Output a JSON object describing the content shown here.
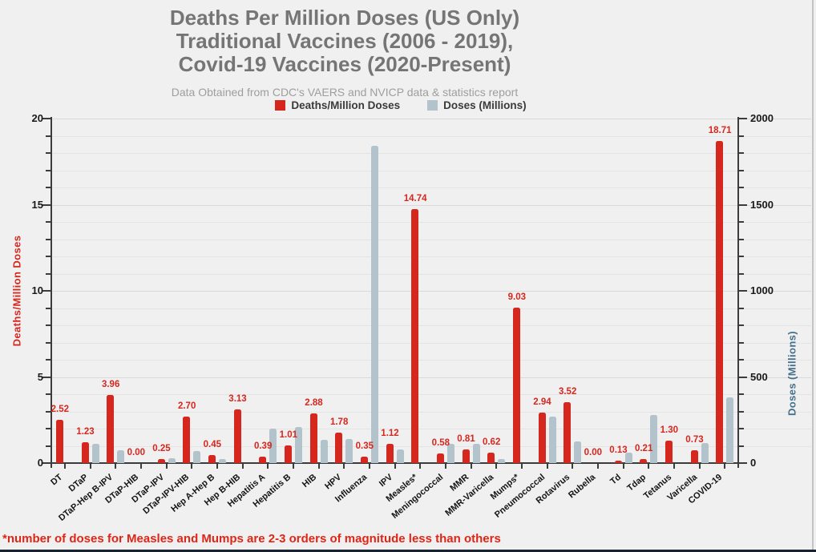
{
  "title": {
    "lines": [
      "Deaths Per Million Doses (US Only)",
      "Traditional Vaccines (2006 - 2019),",
      "Covid-19 Vaccines (2020-Present)"
    ]
  },
  "subtitle": "Data Obtained from CDC's VAERS and NVICP data & statistics report",
  "legend": [
    {
      "label": "Deaths/Million Doses",
      "color": "#d5271d"
    },
    {
      "label": "Doses (Millions)",
      "color": "#b2c3cc"
    }
  ],
  "footnote": "*number of doses for Measles and Mumps are 2-3 orders of magnitude less than others",
  "colors": {
    "deaths_red": "#d5271d",
    "doses_gray": "#b2c3cc",
    "title_gray": "#757575",
    "subtitle_gray": "#9e9e9e",
    "axis_dark": "#3c3c3c",
    "right_axis_blue": "#44708c",
    "footnote_red": "#e02516",
    "background": "#f0f0f1"
  },
  "chart_data": {
    "type": "bar",
    "title": "Deaths Per Million Doses (US Only) Traditional Vaccines (2006 - 2019), Covid-19 Vaccines (2020-Present)",
    "subtitle": "Data Obtained from CDC's VAERS and NVICP data & statistics report",
    "legend_position": "top",
    "grid": true,
    "categories": [
      "DT",
      "DTaP",
      "DTaP-Hep B-IPV",
      "DTaP-HIB",
      "DTaP-IPV",
      "DTaP-IPV-HIB",
      "Hep A-Hep B",
      "Hep B-HIB",
      "Hepatitis A",
      "Hepatitis B",
      "HIB",
      "HPV",
      "Influenza",
      "IPV",
      "Measles*",
      "Meningococcal",
      "MMR",
      "MMR-Varicella",
      "Mumps*",
      "Pneumococcal",
      "Rotavirus",
      "Rubella",
      "Td",
      "Tdap",
      "Tetanus",
      "Varicella",
      "COVID-19"
    ],
    "series": [
      {
        "name": "Deaths/Million Doses",
        "axis": "left",
        "color": "#d5271d",
        "data_labels": true,
        "values": [
          2.52,
          1.23,
          3.96,
          0.0,
          0.25,
          2.7,
          0.45,
          3.13,
          0.39,
          1.01,
          2.88,
          1.78,
          0.35,
          1.12,
          14.74,
          0.58,
          0.81,
          0.62,
          9.03,
          2.94,
          3.52,
          0.0,
          0.13,
          0.21,
          1.3,
          0.73,
          18.71
        ]
      },
      {
        "name": "Doses (Millions)",
        "axis": "right",
        "color": "#b2c3cc",
        "data_labels": false,
        "values": [
          0,
          110,
          75,
          0,
          30,
          70,
          25,
          0,
          200,
          210,
          135,
          140,
          1840,
          80,
          0,
          110,
          110,
          25,
          0,
          270,
          125,
          0,
          60,
          280,
          0,
          115,
          380
        ]
      }
    ],
    "left_axis": {
      "title": "Deaths/Million Doses",
      "min": 0,
      "max": 20,
      "major_ticks": [
        0,
        5,
        10,
        15,
        20
      ],
      "minor_tick_step": 1
    },
    "right_axis": {
      "title": "Doses (Millions)",
      "min": 0,
      "max": 2000,
      "major_ticks": [
        0,
        500,
        1000,
        1500,
        2000
      ],
      "minor_tick_step": 100
    }
  }
}
